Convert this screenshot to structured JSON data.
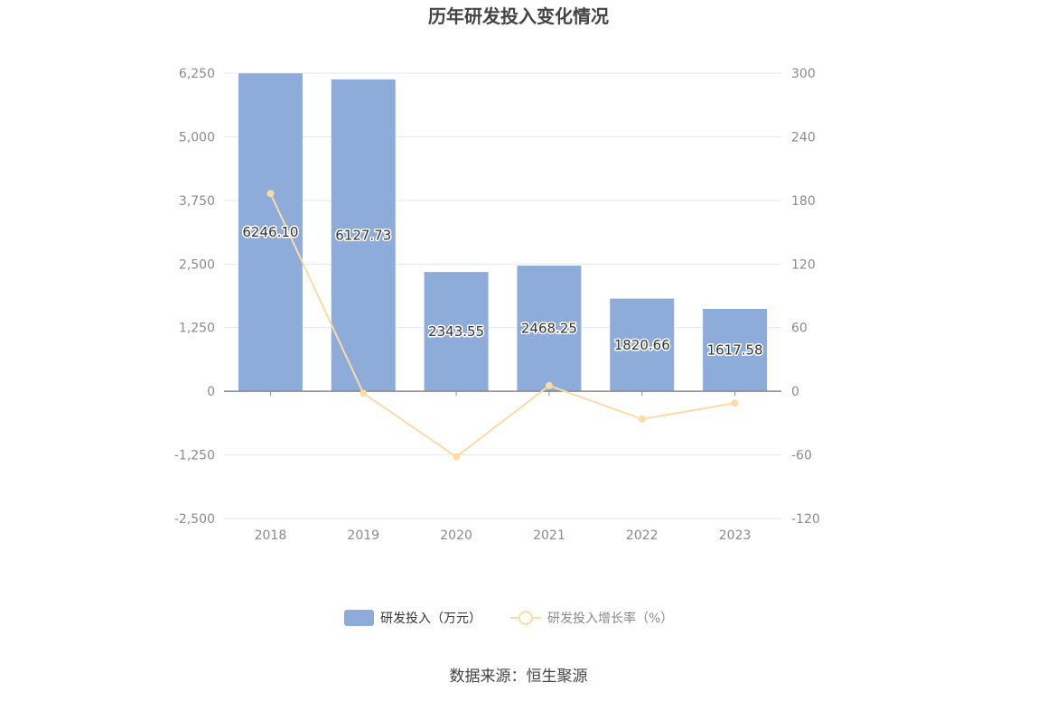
{
  "chart_data": {
    "type": "bar",
    "title": "历年研发投入变化情况",
    "categories": [
      "2018",
      "2019",
      "2020",
      "2021",
      "2022",
      "2023"
    ],
    "series": [
      {
        "name": "研发投入（万元）",
        "type": "bar",
        "axis": "left",
        "values": [
          6246.1,
          6127.73,
          2343.55,
          2468.25,
          1820.66,
          1617.58
        ],
        "labels": [
          "6246.10",
          "6127.73",
          "2343.55",
          "2468.25",
          "1820.66",
          "1617.58"
        ],
        "color": "#8eacd9"
      },
      {
        "name": "研发投入增长率（%）",
        "type": "line",
        "axis": "right",
        "values": [
          186.5,
          -1.9,
          -61.8,
          5.3,
          -26.2,
          -11.2
        ],
        "color": "#fbdba6"
      }
    ],
    "y_left": {
      "ylim": [
        -2500,
        6250
      ],
      "ticks": [
        -2500,
        -1250,
        0,
        1250,
        2500,
        3750,
        5000,
        6250
      ],
      "tick_labels": [
        "-2,500",
        "-1,250",
        "0",
        "1,250",
        "2,500",
        "3,750",
        "5,000",
        "6,250"
      ]
    },
    "y_right": {
      "ylim": [
        -120,
        300
      ],
      "ticks": [
        -120,
        -60,
        0,
        60,
        120,
        180,
        240,
        300
      ],
      "tick_labels": [
        "-120",
        "-60",
        "0",
        "60",
        "120",
        "180",
        "240",
        "300"
      ]
    },
    "grid": true,
    "legend_position": "bottom"
  },
  "source_text": "数据来源：恒生聚源"
}
